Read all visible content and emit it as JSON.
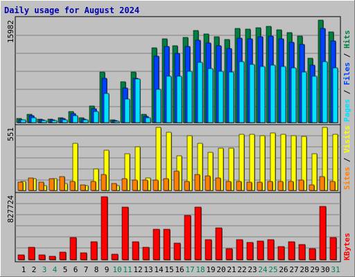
{
  "title": "Daily usage for August 2024",
  "colors": {
    "background": "#C0C0C0",
    "title": "#0000B0",
    "hits": "#008040",
    "files": "#0040FF",
    "pages": "#00E0FF",
    "visits": "#FFFF00",
    "sites": "#FF8000",
    "kbytes": "#FF0000",
    "weekday_label": "#000000",
    "weekend_label": "#00805A"
  },
  "chart_data": [
    {
      "type": "bar",
      "panel": "hits-files-pages",
      "ymax_label": "15982",
      "ylim": [
        0,
        15982
      ],
      "right_label": [
        "Pages",
        "Files",
        "Hits"
      ],
      "categories": [
        "1",
        "2",
        "3",
        "4",
        "5",
        "6",
        "7",
        "8",
        "9",
        "10",
        "11",
        "12",
        "13",
        "14",
        "15",
        "16",
        "17",
        "18",
        "19",
        "20",
        "21",
        "22",
        "23",
        "24",
        "25",
        "26",
        "27",
        "28",
        "29",
        "30",
        "31"
      ],
      "weekend_days": [
        "3",
        "4",
        "10",
        "11",
        "17",
        "18",
        "24",
        "25",
        "31"
      ],
      "series": [
        {
          "name": "Hits",
          "values": [
            640,
            1280,
            560,
            560,
            800,
            1680,
            800,
            2560,
            7840,
            480,
            6320,
            7920,
            1280,
            11680,
            13120,
            12000,
            13280,
            14400,
            13840,
            13360,
            12960,
            14720,
            14560,
            14800,
            15040,
            14480,
            14000,
            13520,
            10000,
            15982,
            14160
          ]
        },
        {
          "name": "Files",
          "values": [
            480,
            1040,
            400,
            400,
            640,
            1360,
            560,
            2160,
            6960,
            320,
            5440,
            6960,
            960,
            10400,
            11840,
            10800,
            11920,
            12880,
            12400,
            12000,
            11520,
            13200,
            13120,
            13360,
            13520,
            13040,
            12560,
            12160,
            8960,
            14640,
            12720
          ]
        },
        {
          "name": "Pages",
          "values": [
            400,
            720,
            320,
            320,
            480,
            1040,
            400,
            1680,
            4560,
            240,
            3680,
            6800,
            720,
            5200,
            7200,
            7280,
            8000,
            9440,
            8400,
            8000,
            7920,
            9520,
            9040,
            8720,
            8960,
            8800,
            8480,
            7920,
            7200,
            9520,
            8480
          ]
        }
      ]
    },
    {
      "type": "bar",
      "panel": "visits-sites",
      "ymax_label": "551",
      "ylim": [
        0,
        551
      ],
      "right_label": [
        "Sites",
        "Visits"
      ],
      "categories": [
        "1",
        "2",
        "3",
        "4",
        "5",
        "6",
        "7",
        "8",
        "9",
        "10",
        "11",
        "12",
        "13",
        "14",
        "15",
        "16",
        "17",
        "18",
        "19",
        "20",
        "21",
        "22",
        "23",
        "24",
        "25",
        "26",
        "27",
        "28",
        "29",
        "30",
        "31"
      ],
      "series": [
        {
          "name": "Visits",
          "values": [
            80,
            100,
            40,
            100,
            60,
            410,
            40,
            190,
            350,
            40,
            320,
            380,
            110,
            551,
            510,
            300,
            480,
            410,
            330,
            370,
            370,
            490,
            490,
            480,
            500,
            490,
            480,
            470,
            320,
            551,
            490
          ]
        },
        {
          "name": "Sites",
          "values": [
            70,
            110,
            70,
            100,
            120,
            80,
            50,
            80,
            140,
            60,
            100,
            90,
            90,
            90,
            100,
            170,
            80,
            140,
            130,
            110,
            80,
            80,
            70,
            70,
            80,
            80,
            80,
            90,
            50,
            120,
            80
          ]
        }
      ]
    },
    {
      "type": "bar",
      "panel": "kbytes",
      "ymax_label": "827724",
      "ylim": [
        0,
        827724
      ],
      "right_label": [
        "KBytes"
      ],
      "categories": [
        "1",
        "2",
        "3",
        "4",
        "5",
        "6",
        "7",
        "8",
        "9",
        "10",
        "11",
        "12",
        "13",
        "14",
        "15",
        "16",
        "17",
        "18",
        "19",
        "20",
        "21",
        "22",
        "23",
        "24",
        "25",
        "26",
        "27",
        "28",
        "29",
        "30",
        "31"
      ],
      "series": [
        {
          "name": "KBytes",
          "values": [
            60000,
            160000,
            60000,
            45000,
            100000,
            290000,
            90000,
            240000,
            827724,
            70000,
            690000,
            240000,
            160000,
            400000,
            400000,
            220000,
            580000,
            690000,
            260000,
            420000,
            150000,
            260000,
            230000,
            250000,
            260000,
            170000,
            240000,
            200000,
            150000,
            700000,
            290000
          ]
        }
      ]
    }
  ]
}
